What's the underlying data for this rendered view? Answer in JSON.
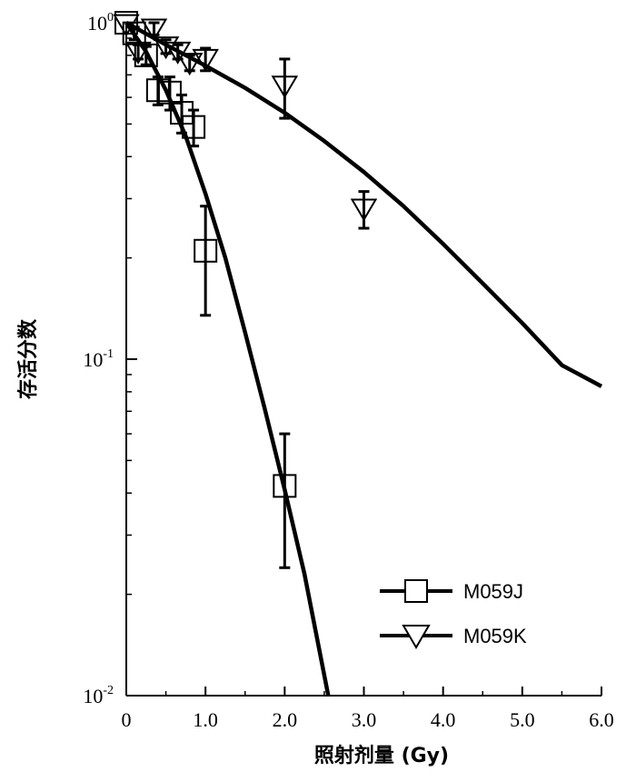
{
  "chart_data": {
    "type": "line",
    "xlabel": "照射剂量 (Gy)",
    "ylabel": "存活分数",
    "x_scale": "linear",
    "y_scale": "log",
    "xlim": [
      0,
      6
    ],
    "ylim": [
      0.01,
      1
    ],
    "x_ticks": [
      "0",
      "1.0",
      "2.0",
      "3.0",
      "4.0",
      "5.0",
      "6.0"
    ],
    "y_ticks": [
      {
        "value": 1,
        "base": "10",
        "exp": "0"
      },
      {
        "value": 0.1,
        "base": "10",
        "exp": "-1"
      },
      {
        "value": 0.01,
        "base": "10",
        "exp": "-2"
      }
    ],
    "grid": false,
    "legend_position": "bottom-right",
    "series": [
      {
        "name": "M059J",
        "marker": "square",
        "points": [
          {
            "x": 0.0,
            "y": 1.0,
            "err": 0.0
          },
          {
            "x": 0.1,
            "y": 0.93,
            "err": 0.04
          },
          {
            "x": 0.25,
            "y": 0.8,
            "err": 0.05
          },
          {
            "x": 0.4,
            "y": 0.63,
            "err": 0.06
          },
          {
            "x": 0.55,
            "y": 0.62,
            "err": 0.07
          },
          {
            "x": 0.7,
            "y": 0.54,
            "err": 0.07
          },
          {
            "x": 0.85,
            "y": 0.49,
            "err": 0.06
          },
          {
            "x": 1.0,
            "y": 0.21,
            "err": 0.075
          },
          {
            "x": 2.0,
            "y": 0.042,
            "err": 0.018
          }
        ],
        "fit": [
          {
            "x": 0.0,
            "y": 1.0
          },
          {
            "x": 0.25,
            "y": 0.82
          },
          {
            "x": 0.5,
            "y": 0.63
          },
          {
            "x": 0.75,
            "y": 0.46
          },
          {
            "x": 1.0,
            "y": 0.31
          },
          {
            "x": 1.25,
            "y": 0.2
          },
          {
            "x": 1.5,
            "y": 0.12
          },
          {
            "x": 1.75,
            "y": 0.071
          },
          {
            "x": 2.0,
            "y": 0.041
          },
          {
            "x": 2.25,
            "y": 0.023
          },
          {
            "x": 2.55,
            "y": 0.01
          }
        ]
      },
      {
        "name": "M059K",
        "marker": "triangle-down",
        "points": [
          {
            "x": 0.0,
            "y": 0.99,
            "err": 0.0
          },
          {
            "x": 0.15,
            "y": 0.82,
            "err": 0.04
          },
          {
            "x": 0.35,
            "y": 0.96,
            "err": 0.04
          },
          {
            "x": 0.5,
            "y": 0.85,
            "err": 0.04
          },
          {
            "x": 0.65,
            "y": 0.82,
            "err": 0.04
          },
          {
            "x": 0.8,
            "y": 0.76,
            "err": 0.04
          },
          {
            "x": 1.0,
            "y": 0.78,
            "err": 0.06
          },
          {
            "x": 2.0,
            "y": 0.65,
            "err": 0.13
          },
          {
            "x": 3.0,
            "y": 0.28,
            "err": 0.035
          }
        ],
        "fit": [
          {
            "x": 0.0,
            "y": 1.0
          },
          {
            "x": 0.5,
            "y": 0.86
          },
          {
            "x": 1.0,
            "y": 0.745
          },
          {
            "x": 1.5,
            "y": 0.64
          },
          {
            "x": 2.0,
            "y": 0.54
          },
          {
            "x": 2.5,
            "y": 0.445
          },
          {
            "x": 3.0,
            "y": 0.36
          },
          {
            "x": 3.5,
            "y": 0.285
          },
          {
            "x": 4.0,
            "y": 0.22
          },
          {
            "x": 4.5,
            "y": 0.168
          },
          {
            "x": 5.0,
            "y": 0.128
          },
          {
            "x": 5.5,
            "y": 0.096
          },
          {
            "x": 6.0,
            "y": 0.083
          }
        ]
      }
    ]
  }
}
